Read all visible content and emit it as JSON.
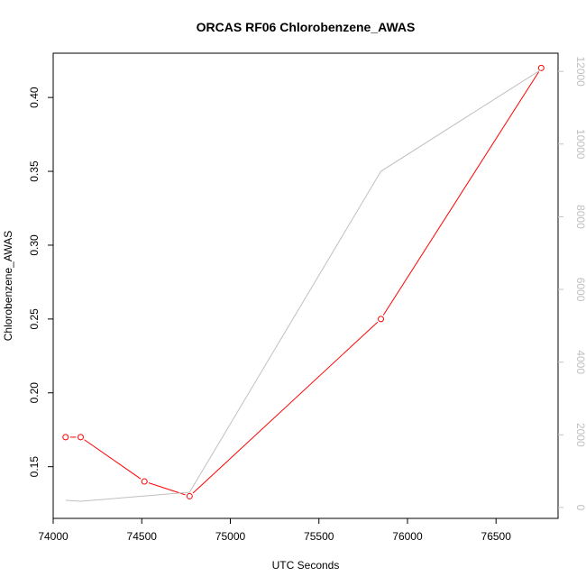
{
  "chart_data": {
    "type": "line",
    "title": "ORCAS RF06 Chlorobenzene_AWAS",
    "xlabel": "UTC Seconds",
    "ylabel": "Chlorobenzene_AWAS",
    "xlim": [
      74000,
      76850
    ],
    "ylim": [
      0.115,
      0.43
    ],
    "y2lim": [
      -300,
      12500
    ],
    "x_ticks": [
      74000,
      74500,
      75000,
      75500,
      76000,
      76500
    ],
    "y_ticks": [
      0.15,
      0.2,
      0.25,
      0.3,
      0.35,
      0.4
    ],
    "y_tick_labels": [
      "0.15",
      "0.20",
      "0.25",
      "0.30",
      "0.35",
      "0.40"
    ],
    "y2_ticks": [
      0,
      2000,
      4000,
      6000,
      8000,
      10000,
      12000
    ],
    "grid": false,
    "series": [
      {
        "axis": "left",
        "color": "#ff0000",
        "style": "line-markers",
        "marker": "open-circle",
        "points": [
          {
            "x": 74070,
            "y": 0.17
          },
          {
            "x": 74155,
            "y": 0.17
          },
          {
            "x": 74515,
            "y": 0.14
          },
          {
            "x": 74770,
            "y": 0.13
          },
          {
            "x": 75850,
            "y": 0.25
          },
          {
            "x": 76755,
            "y": 0.42
          }
        ]
      },
      {
        "axis": "right",
        "color": "#c0c0c0",
        "style": "line",
        "points": [
          {
            "x": 74070,
            "y": 200
          },
          {
            "x": 74155,
            "y": 170
          },
          {
            "x": 74770,
            "y": 420
          },
          {
            "x": 75850,
            "y": 9250
          },
          {
            "x": 76755,
            "y": 12050
          }
        ]
      }
    ]
  }
}
